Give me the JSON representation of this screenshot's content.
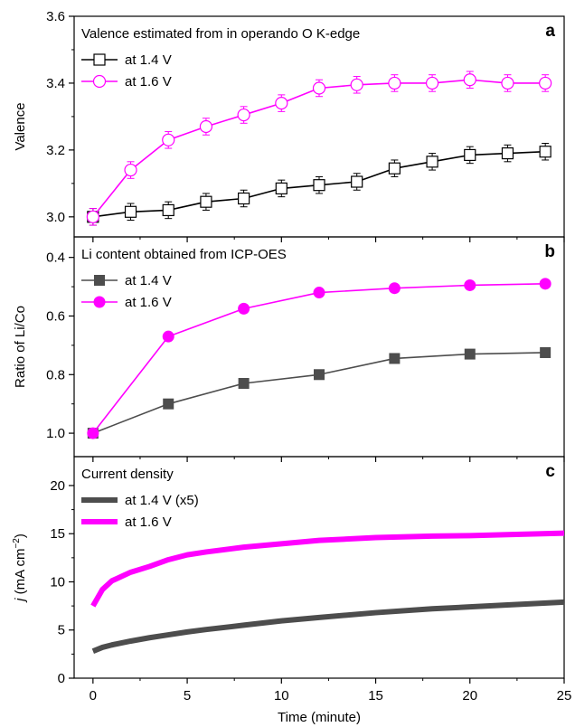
{
  "colors": {
    "series_1p4": "#000000",
    "series_1p4_b": "#4d4d4d",
    "series_1p6": "#ff00ff",
    "axis": "#000000"
  },
  "xaxis": {
    "label": "Time (minute)",
    "ticks": [
      "0",
      "5",
      "10",
      "15",
      "20",
      "25"
    ],
    "range": [
      -1,
      25
    ]
  },
  "chart_data": [
    {
      "panel": "a",
      "type": "line",
      "title": "Valence estimated from in operando O K-edge",
      "ylabel": "Valence",
      "ylim": [
        2.94,
        3.6
      ],
      "yticks": [
        "3.0",
        "3.2",
        "3.4",
        "3.6"
      ],
      "yticks_values": [
        3.0,
        3.2,
        3.4,
        3.6
      ],
      "legend_position": "top-left",
      "x": [
        0,
        2,
        4,
        6,
        8,
        10,
        12,
        14,
        16,
        18,
        20,
        22,
        24
      ],
      "series": [
        {
          "name": "at 1.4 V",
          "marker": "open-square",
          "values": [
            3.0,
            3.015,
            3.02,
            3.045,
            3.055,
            3.085,
            3.095,
            3.105,
            3.145,
            3.165,
            3.185,
            3.19,
            3.195
          ],
          "errors": [
            0.025,
            0.025,
            0.025,
            0.025,
            0.025,
            0.025,
            0.025,
            0.025,
            0.025,
            0.025,
            0.025,
            0.025,
            0.025
          ]
        },
        {
          "name": "at 1.6 V",
          "marker": "open-circle",
          "values": [
            3.0,
            3.14,
            3.23,
            3.27,
            3.305,
            3.34,
            3.385,
            3.395,
            3.4,
            3.4,
            3.41,
            3.4,
            3.4
          ],
          "errors": [
            0.025,
            0.025,
            0.025,
            0.025,
            0.025,
            0.025,
            0.025,
            0.025,
            0.025,
            0.025,
            0.025,
            0.025,
            0.025
          ]
        }
      ]
    },
    {
      "panel": "b",
      "type": "line",
      "title": "Li content obtained from ICP-OES",
      "ylabel": "Ratio of Li/Co",
      "ylim": [
        1.08,
        0.33
      ],
      "yticks": [
        "0.4",
        "0.6",
        "0.8",
        "1.0"
      ],
      "yticks_values": [
        0.4,
        0.6,
        0.8,
        1.0
      ],
      "legend_position": "top-left",
      "x": [
        0,
        4,
        8,
        12,
        16,
        20,
        24
      ],
      "series": [
        {
          "name": "at 1.4 V",
          "marker": "filled-square",
          "values": [
            1.0,
            0.9,
            0.83,
            0.8,
            0.745,
            0.73,
            0.725
          ]
        },
        {
          "name": "at 1.6 V",
          "marker": "filled-circle",
          "values": [
            1.0,
            0.67,
            0.575,
            0.52,
            0.505,
            0.495,
            0.49
          ]
        }
      ]
    },
    {
      "panel": "c",
      "type": "line",
      "title": "Current density",
      "ylabel": "j (mA cm−2)",
      "ylabel_parts": {
        "italic": "j",
        "pre": " (mA cm",
        "sup": "−2",
        "post": ")"
      },
      "ylim": [
        0,
        23
      ],
      "yticks": [
        "0",
        "5",
        "10",
        "15",
        "20"
      ],
      "yticks_values": [
        0,
        5,
        10,
        15,
        20
      ],
      "legend_position": "top-left",
      "x": [
        0,
        0.5,
        1,
        2,
        3,
        4,
        5,
        6,
        8,
        10,
        12,
        15,
        18,
        20,
        22,
        25
      ],
      "series": [
        {
          "name": "at 1.4 V (x5)",
          "values": [
            2.8,
            3.2,
            3.45,
            3.85,
            4.2,
            4.5,
            4.8,
            5.05,
            5.5,
            5.95,
            6.3,
            6.8,
            7.2,
            7.4,
            7.6,
            7.9
          ]
        },
        {
          "name": "at 1.6 V",
          "values": [
            7.5,
            9.2,
            10.1,
            11.0,
            11.6,
            12.3,
            12.8,
            13.1,
            13.6,
            13.95,
            14.3,
            14.6,
            14.75,
            14.8,
            14.9,
            15.05
          ]
        }
      ]
    }
  ]
}
